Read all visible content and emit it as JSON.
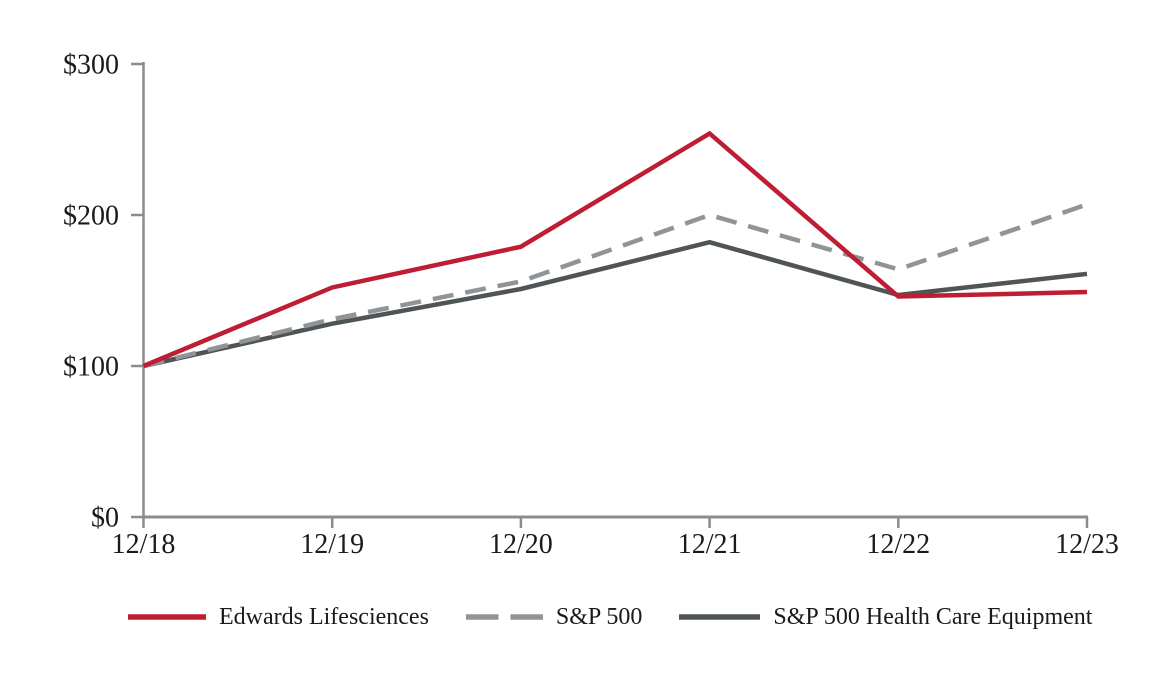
{
  "chart_data": {
    "type": "line",
    "title": "",
    "categories": [
      "12/18",
      "12/19",
      "12/20",
      "12/21",
      "12/22",
      "12/23"
    ],
    "series": [
      {
        "name": "Edwards Lifesciences",
        "values": [
          100,
          152,
          179,
          254,
          146,
          149
        ],
        "color": "#be1e33",
        "dash": "solid"
      },
      {
        "name": "S&P 500",
        "values": [
          100,
          131,
          156,
          200,
          164,
          207
        ],
        "color": "#919497",
        "dash": "dashed"
      },
      {
        "name": "S&P 500 Health Care Equipment",
        "values": [
          100,
          128,
          151,
          182,
          147,
          161
        ],
        "color": "#4f5557",
        "dash": "solid"
      }
    ],
    "ylim": [
      0,
      300
    ],
    "yticks": [
      0,
      100,
      200,
      300
    ],
    "ytick_labels": [
      "$0",
      "$100",
      "$200",
      "$300"
    ],
    "xlabel": "",
    "ylabel": "",
    "grid": false,
    "legend_position": "bottom",
    "axis_color": "#8c8c8c",
    "text_color": "#1a1a1a"
  }
}
